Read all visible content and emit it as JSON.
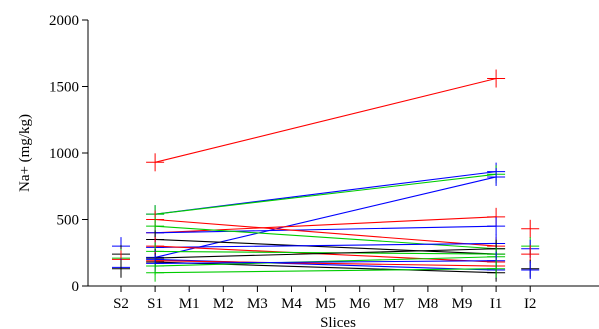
{
  "chart_data": {
    "type": "line",
    "title": "",
    "xlabel": "Slices",
    "ylabel": "Na+ (mg/kg)",
    "categories": [
      "S2",
      "S1",
      "M1",
      "M2",
      "M3",
      "M4",
      "M5",
      "M6",
      "M7",
      "M8",
      "M9",
      "I1",
      "I2"
    ],
    "ylim": [
      0,
      2000
    ],
    "yticks": [
      0,
      500,
      1000,
      1500,
      2000
    ],
    "grid": false,
    "legend": "none",
    "series": [
      {
        "color": "#ff0000",
        "points": [
          [
            "S1",
            930
          ],
          [
            "I1",
            1560
          ]
        ]
      },
      {
        "color": "#0000ff",
        "points": [
          [
            "S1",
            540
          ],
          [
            "I1",
            860
          ]
        ]
      },
      {
        "color": "#00cc00",
        "points": [
          [
            "S1",
            540
          ],
          [
            "I1",
            840
          ]
        ]
      },
      {
        "color": "#0000ff",
        "points": [
          [
            "S1",
            215
          ],
          [
            "I1",
            820
          ]
        ]
      },
      {
        "color": "#ff0000",
        "points": [
          [
            "S1",
            400
          ],
          [
            "I1",
            520
          ]
        ]
      },
      {
        "color": "#0000ff",
        "points": [
          [
            "S1",
            400
          ],
          [
            "I1",
            450
          ]
        ]
      },
      {
        "color": "#ff0000",
        "points": [
          [
            "S1",
            500
          ],
          [
            "I1",
            300
          ]
        ]
      },
      {
        "color": "#00cc00",
        "points": [
          [
            "S1",
            450
          ],
          [
            "I1",
            280
          ]
        ]
      },
      {
        "color": "#000000",
        "points": [
          [
            "S1",
            350
          ],
          [
            "I1",
            240
          ]
        ]
      },
      {
        "color": "#0000ff",
        "points": [
          [
            "S1",
            290
          ],
          [
            "I1",
            320
          ]
        ]
      },
      {
        "color": "#ff0000",
        "points": [
          [
            "S1",
            300
          ],
          [
            "I1",
            180
          ]
        ]
      },
      {
        "color": "#00cc00",
        "points": [
          [
            "S1",
            260
          ],
          [
            "I1",
            240
          ]
        ]
      },
      {
        "color": "#000000",
        "points": [
          [
            "S1",
            210
          ],
          [
            "I1",
            280
          ]
        ]
      },
      {
        "color": "#0000ff",
        "points": [
          [
            "S1",
            200
          ],
          [
            "I1",
            120
          ]
        ]
      },
      {
        "color": "#ff0000",
        "points": [
          [
            "S1",
            190
          ],
          [
            "I1",
            150
          ]
        ]
      },
      {
        "color": "#000000",
        "points": [
          [
            "S1",
            180
          ],
          [
            "I1",
            100
          ]
        ]
      },
      {
        "color": "#00cc00",
        "points": [
          [
            "S1",
            150
          ],
          [
            "I1",
            220
          ]
        ]
      },
      {
        "color": "#0000ff",
        "points": [
          [
            "S1",
            170
          ],
          [
            "I1",
            190
          ]
        ]
      },
      {
        "color": "#00cc00",
        "points": [
          [
            "S1",
            100
          ],
          [
            "I1",
            130
          ]
        ]
      }
    ],
    "single_points": [
      {
        "color": "#0000ff",
        "category": "S2",
        "y": 300
      },
      {
        "color": "#000000",
        "category": "S2",
        "y": 240
      },
      {
        "color": "#00cc00",
        "category": "S2",
        "y": 210
      },
      {
        "color": "#ff0000",
        "category": "S2",
        "y": 200
      },
      {
        "color": "#0000ff",
        "category": "S2",
        "y": 140
      },
      {
        "color": "#000000",
        "category": "S2",
        "y": 130
      },
      {
        "color": "#ff0000",
        "category": "I2",
        "y": 430
      },
      {
        "color": "#00cc00",
        "category": "I2",
        "y": 300
      },
      {
        "color": "#0000ff",
        "category": "I2",
        "y": 280
      },
      {
        "color": "#ff0000",
        "category": "I2",
        "y": 240
      },
      {
        "color": "#000000",
        "category": "I2",
        "y": 130
      },
      {
        "color": "#0000ff",
        "category": "I2",
        "y": 120
      }
    ]
  }
}
